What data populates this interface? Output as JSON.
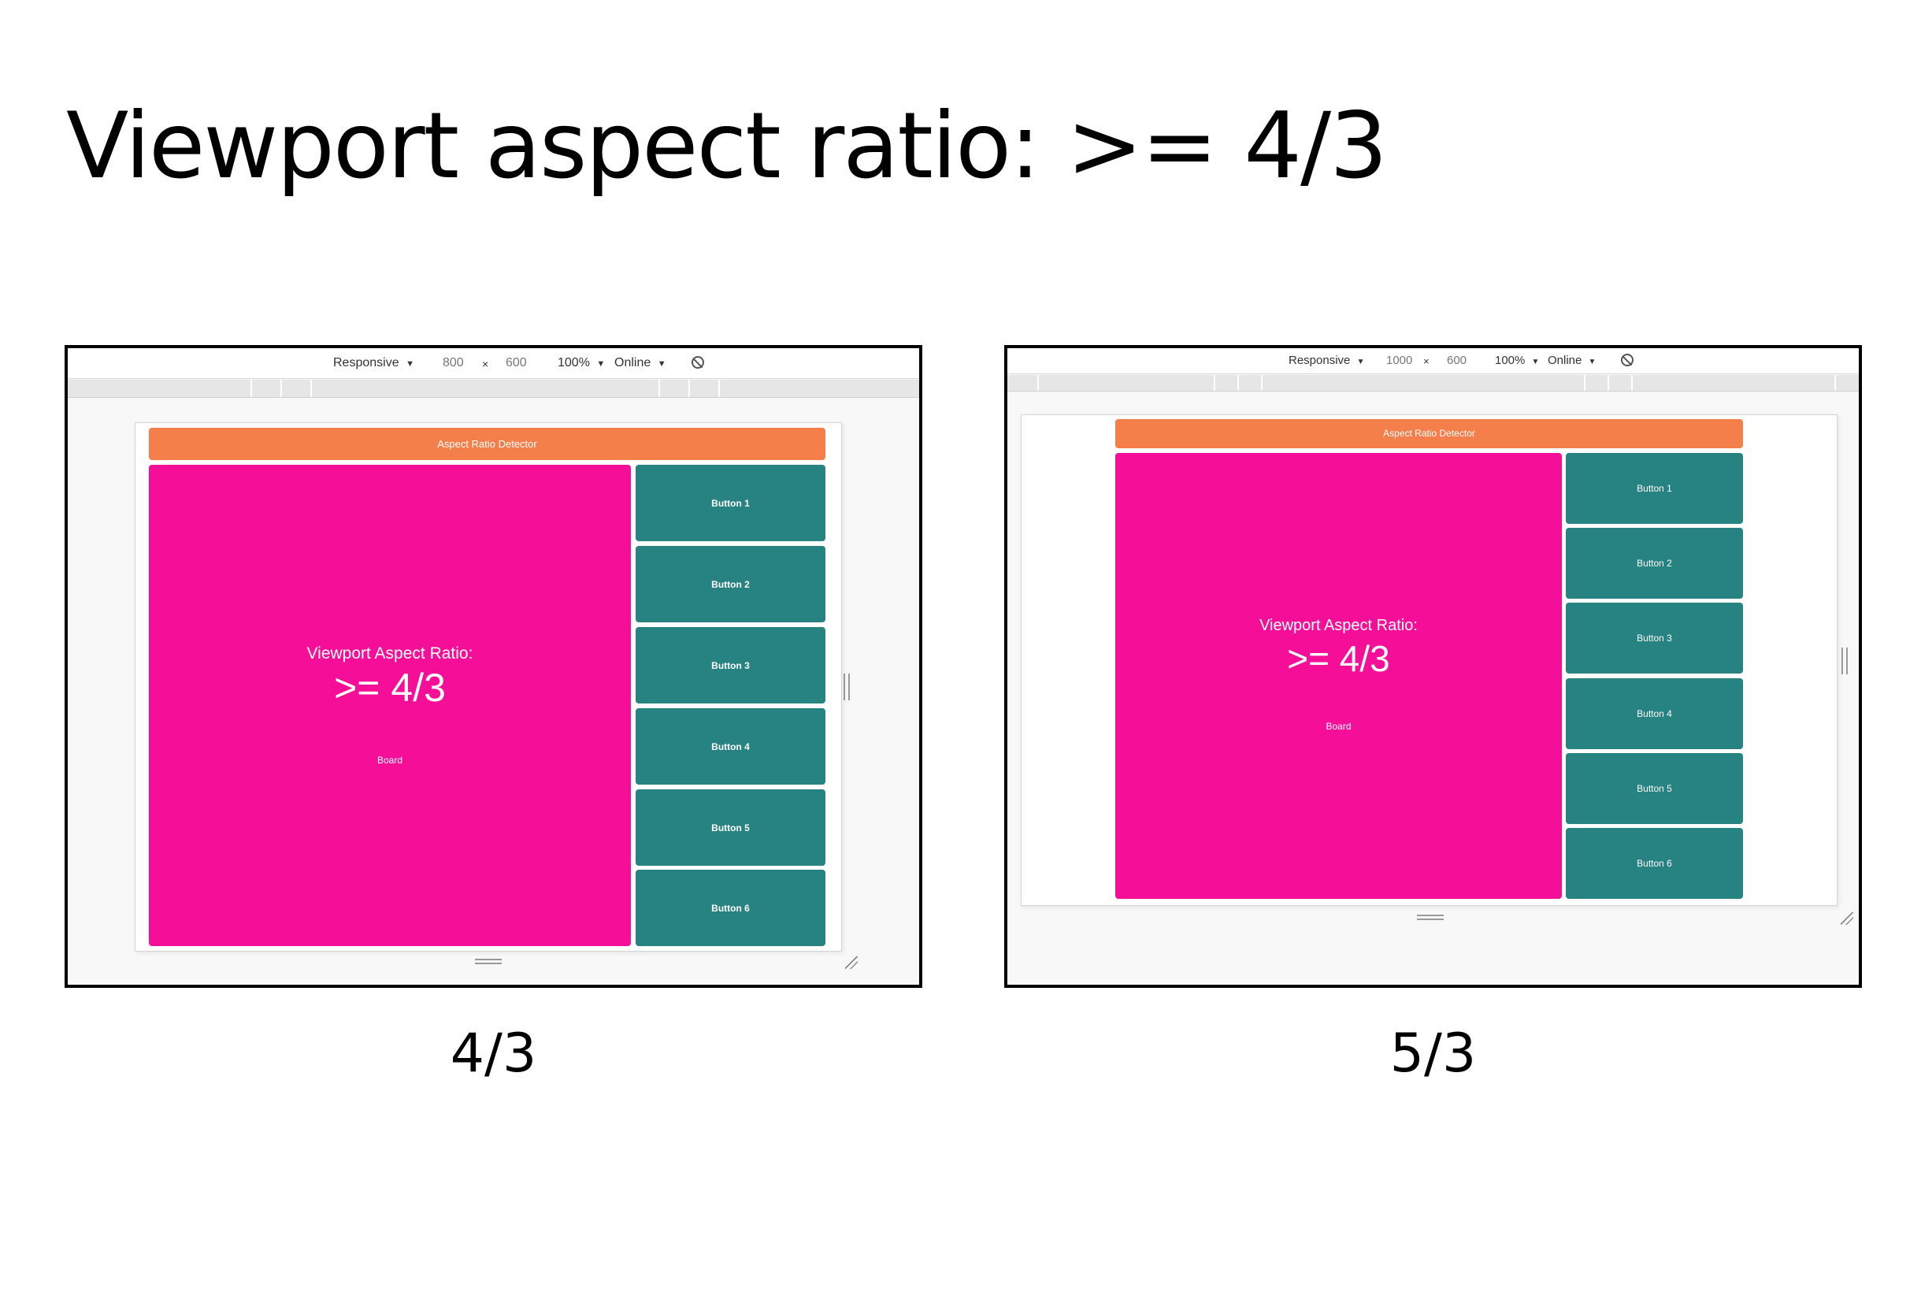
{
  "title": "Viewport aspect ratio: >= 4/3",
  "panels": [
    {
      "toolbar": {
        "device": "Responsive",
        "dropdown_arrow": "▼",
        "width": "800",
        "times": "×",
        "height": "600",
        "zoom": "100%",
        "network": "Online",
        "rotate_icon": "rotate-icon"
      },
      "app": {
        "header": "Aspect Ratio Detector",
        "board": {
          "label": "Viewport Aspect Ratio:",
          "value": ">= 4/3",
          "caption": "Board"
        },
        "buttons": [
          "Button 1",
          "Button 2",
          "Button 3",
          "Button 4",
          "Button 5",
          "Button 6"
        ]
      },
      "caption": "4/3"
    },
    {
      "toolbar": {
        "device": "Responsive",
        "dropdown_arrow": "▼",
        "width": "1000",
        "times": "×",
        "height": "600",
        "zoom": "100%",
        "network": "Online",
        "rotate_icon": "rotate-icon"
      },
      "app": {
        "header": "Aspect Ratio Detector",
        "board": {
          "label": "Viewport Aspect Ratio:",
          "value": ">= 4/3",
          "caption": "Board"
        },
        "buttons": [
          "Button 1",
          "Button 2",
          "Button 3",
          "Button 4",
          "Button 5",
          "Button 6"
        ]
      },
      "caption": "5/3"
    }
  ],
  "colors": {
    "header": "#f47f4b",
    "board": "#f40e98",
    "button": "#278282"
  }
}
